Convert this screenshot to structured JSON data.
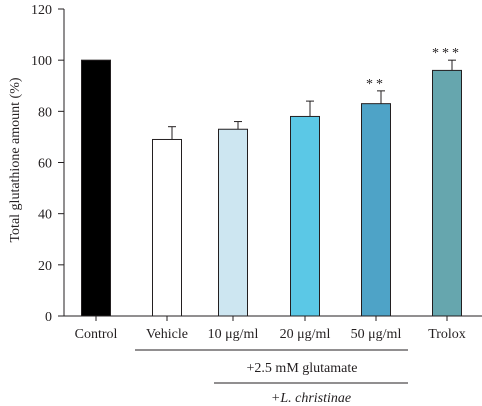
{
  "chart_data": {
    "type": "bar",
    "categories": [
      "Control",
      "Vehicle",
      "10 μg/ml",
      "20 μg/ml",
      "50 μg/ml",
      "Trolox"
    ],
    "values": [
      100,
      69,
      73,
      78,
      83,
      96
    ],
    "errors": [
      0,
      5,
      3,
      6,
      5,
      4
    ],
    "significance": [
      "",
      "",
      "",
      "",
      "**",
      "***"
    ],
    "colors": [
      "#000000",
      "#ffffff",
      "#cde6f1",
      "#5bc8e6",
      "#4ea3c7",
      "#66a6ae"
    ],
    "ylabel": "Total glutathione amount (%)",
    "ylim": [
      0,
      120
    ],
    "yticks": [
      0,
      20,
      40,
      60,
      80,
      100,
      120
    ],
    "grid": false,
    "annotations": {
      "glutamate": "+2.5 mM glutamate",
      "extract": "+L. christinae"
    }
  }
}
